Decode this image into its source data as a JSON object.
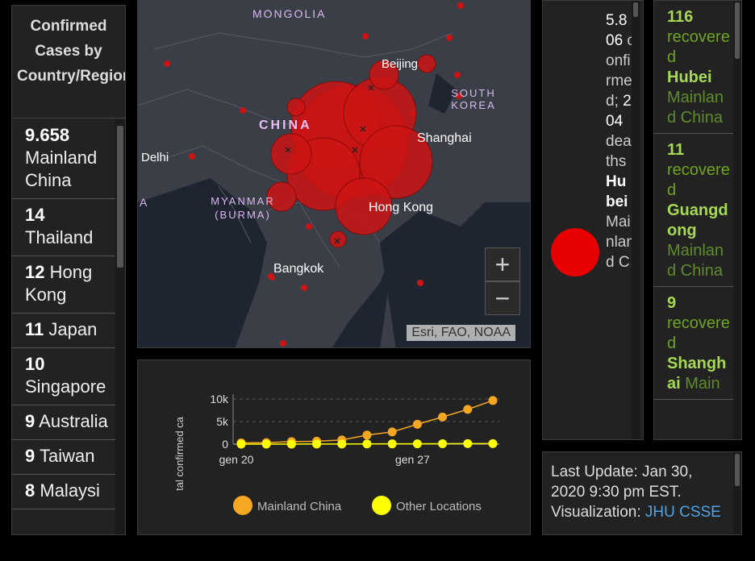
{
  "left_panel": {
    "title": "Confirmed Cases by Country/Region",
    "countries": [
      {
        "count": "9.658",
        "name": "Mainland China"
      },
      {
        "count": "14",
        "name": "Thailand"
      },
      {
        "count": "12",
        "name": "Hong Kong"
      },
      {
        "count": "11",
        "name": "Japan"
      },
      {
        "count": "10",
        "name": "Singapore"
      },
      {
        "count": "9",
        "name": "Australia"
      },
      {
        "count": "9",
        "name": "Taiwan"
      },
      {
        "count": "8",
        "name": "Malaysi"
      }
    ]
  },
  "map": {
    "labels": [
      "MONGOLIA",
      "Beijing",
      "SOUTH KOREA",
      "CHINA",
      "Shanghai",
      "Delhi",
      "MYANMAR (BURMA)",
      "Hong Kong",
      "Bangkok",
      "A"
    ],
    "zoom_in": "+",
    "zoom_out": "−",
    "attribution": "Esri, FAO, NOAA",
    "accent_color": "#cc1414"
  },
  "chart_data": {
    "type": "line",
    "ylabel": "tal confirmed ca",
    "y_ticks": [
      "10k",
      "5k",
      "0"
    ],
    "ylim": [
      0,
      10000
    ],
    "x_ticks": [
      "gen 20",
      "gen 27"
    ],
    "x": [
      "gen 20",
      "gen 21",
      "gen 22",
      "gen 23",
      "gen 24",
      "gen 25",
      "gen 26",
      "gen 27",
      "gen 28",
      "gen 29",
      "gen 30"
    ],
    "series": [
      {
        "name": "Mainland China",
        "color": "#f5a623",
        "values": [
          278,
          326,
          547,
          639,
          916,
          2000,
          2700,
          4400,
          6000,
          7700,
          9658
        ]
      },
      {
        "name": "Other Locations",
        "color": "#ffff00",
        "values": [
          4,
          6,
          8,
          14,
          25,
          40,
          57,
          64,
          87,
          105,
          118
        ]
      }
    ],
    "legend_position": "bottom"
  },
  "deaths_panel": {
    "count": "5.806",
    "label1": "confirmed",
    "sep": ";",
    "deaths": "204",
    "label2": "deaths",
    "place": "Hubei",
    "region": "Mainland C",
    "dot_color": "#e60000"
  },
  "recovered_panel": {
    "items": [
      {
        "count": "116",
        "label": "recovered",
        "place": "Hubei",
        "region": "Mainland China"
      },
      {
        "count": "11",
        "label": "recovered",
        "place": "Guangdong",
        "region": "Mainland China"
      },
      {
        "count": "9",
        "label": "recovered",
        "place": "Shanghai",
        "region": "Main"
      }
    ]
  },
  "update_panel": {
    "text": "Last Update: Jan 30, 2020 9:30 pm EST.",
    "vis_label": "Visualization:",
    "vis_link": "JHU CSSE"
  }
}
